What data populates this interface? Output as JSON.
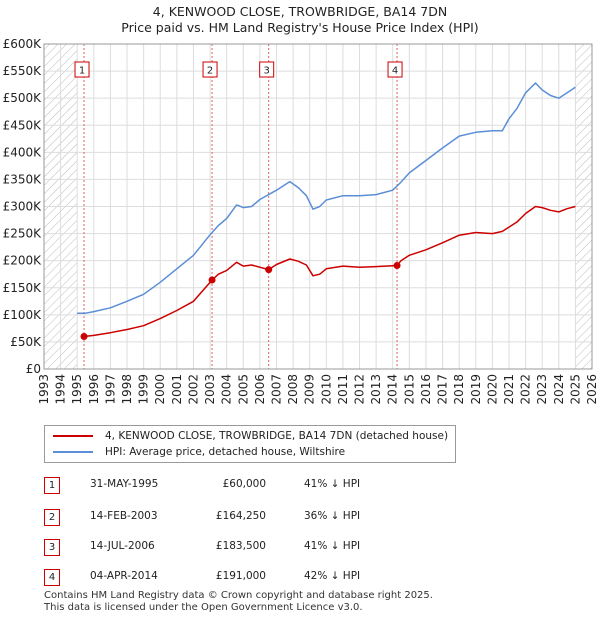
{
  "title_line1": "4, KENWOOD CLOSE, TROWBRIDGE, BA14 7DN",
  "title_line2": "Price paid vs. HM Land Registry's House Price Index (HPI)",
  "chart_data": {
    "type": "line",
    "ylim": [
      0,
      600000
    ],
    "xlim": [
      1993,
      2026
    ],
    "y_ticks": [
      0,
      50000,
      100000,
      150000,
      200000,
      250000,
      300000,
      350000,
      400000,
      450000,
      500000,
      550000,
      600000
    ],
    "y_tick_labels": [
      "£0",
      "£50K",
      "£100K",
      "£150K",
      "£200K",
      "£250K",
      "£300K",
      "£350K",
      "£400K",
      "£450K",
      "£500K",
      "£550K",
      "£600K"
    ],
    "x_ticks": [
      1993,
      1994,
      1995,
      1996,
      1997,
      1998,
      1999,
      2000,
      2001,
      2002,
      2003,
      2004,
      2005,
      2006,
      2007,
      2008,
      2009,
      2010,
      2011,
      2012,
      2013,
      2014,
      2015,
      2016,
      2017,
      2018,
      2019,
      2020,
      2021,
      2022,
      2023,
      2024,
      2025,
      2026
    ],
    "hatched_ranges": [
      [
        1993,
        1995.0
      ],
      [
        2025.0,
        2026
      ]
    ],
    "series": [
      {
        "name": "4, KENWOOD CLOSE, TROWBRIDGE, BA14 7DN (detached house)",
        "color": "#cc0000",
        "x": [
          1995.41,
          1996,
          1997,
          1998,
          1999,
          2000,
          2001,
          2002,
          2003.12,
          2003.5,
          2004,
          2004.6,
          2005,
          2005.5,
          2006.53,
          2007,
          2007.8,
          2008.3,
          2008.8,
          2009.2,
          2009.6,
          2010,
          2011,
          2012,
          2013,
          2014.26,
          2014.5,
          2015,
          2016,
          2017,
          2018,
          2019,
          2020,
          2020.6,
          2021,
          2021.5,
          2022,
          2022.6,
          2023,
          2023.5,
          2024,
          2024.5,
          2025.0
        ],
        "values": [
          60000,
          62000,
          67000,
          73000,
          80000,
          93000,
          108000,
          125000,
          164250,
          175000,
          182000,
          197000,
          190000,
          192000,
          183500,
          193000,
          203000,
          199000,
          192000,
          172000,
          175000,
          185000,
          190000,
          188000,
          189000,
          191000,
          200000,
          210000,
          220000,
          233000,
          247000,
          252000,
          250000,
          254000,
          262000,
          272000,
          287000,
          300000,
          298000,
          293000,
          290000,
          296000,
          300000
        ]
      },
      {
        "name": "HPI: Average price, detached house, Wiltshire",
        "color": "#5b8ed6",
        "x": [
          1995.0,
          1995.5,
          1996,
          1997,
          1998,
          1999,
          2000,
          2001,
          2002,
          2003,
          2003.5,
          2004,
          2004.6,
          2005,
          2005.5,
          2006,
          2007,
          2007.8,
          2008.3,
          2008.8,
          2009.2,
          2009.6,
          2010,
          2011,
          2012,
          2013,
          2014,
          2014.5,
          2015,
          2016,
          2017,
          2018,
          2019,
          2020,
          2020.6,
          2021,
          2021.5,
          2022,
          2022.6,
          2023,
          2023.5,
          2024,
          2024.5,
          2025.0
        ],
        "values": [
          103000,
          103000,
          106000,
          113000,
          125000,
          138000,
          160000,
          185000,
          210000,
          248000,
          265000,
          278000,
          303000,
          298000,
          300000,
          313000,
          330000,
          346000,
          335000,
          320000,
          295000,
          300000,
          312000,
          320000,
          320000,
          322000,
          330000,
          345000,
          362000,
          385000,
          408000,
          430000,
          437000,
          440000,
          440000,
          462000,
          482000,
          510000,
          528000,
          515000,
          505000,
          500000,
          510000,
          520000
        ]
      }
    ],
    "sales": [
      {
        "num": "1",
        "x": 1995.41,
        "value": 60000
      },
      {
        "num": "2",
        "x": 2003.12,
        "value": 164250
      },
      {
        "num": "3",
        "x": 2006.53,
        "value": 183500
      },
      {
        "num": "4",
        "x": 2014.26,
        "value": 191000
      }
    ]
  },
  "legend": {
    "red_label": "4, KENWOOD CLOSE, TROWBRIDGE, BA14 7DN (detached house)",
    "blue_label": "HPI: Average price, detached house, Wiltshire",
    "red_color": "#cc0000",
    "blue_color": "#5b8ed6"
  },
  "sales_table": [
    {
      "num": "1",
      "date": "31-MAY-1995",
      "price": "£60,000",
      "hpi": "41% ↓ HPI"
    },
    {
      "num": "2",
      "date": "14-FEB-2003",
      "price": "£164,250",
      "hpi": "36% ↓ HPI"
    },
    {
      "num": "3",
      "date": "14-JUL-2006",
      "price": "£183,500",
      "hpi": "41% ↓ HPI"
    },
    {
      "num": "4",
      "date": "04-APR-2014",
      "price": "£191,000",
      "hpi": "42% ↓ HPI"
    }
  ],
  "footer_line1": "Contains HM Land Registry data © Crown copyright and database right 2025.",
  "footer_line2": "This data is licensed under the Open Government Licence v3.0."
}
